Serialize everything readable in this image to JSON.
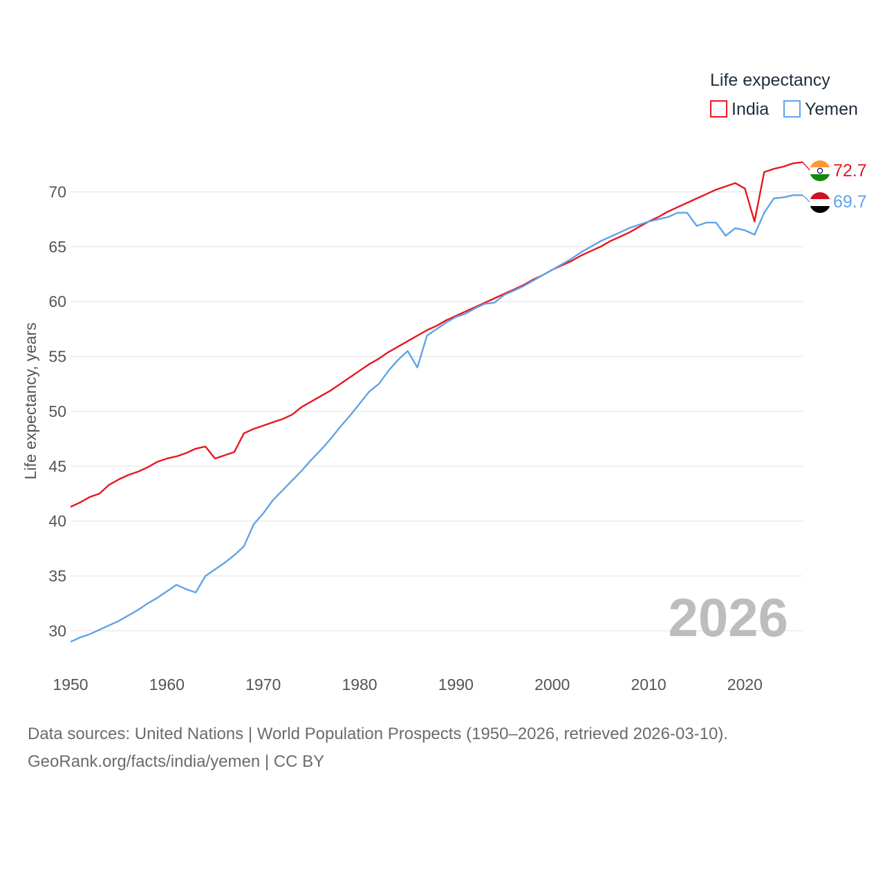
{
  "chart_data": {
    "type": "line",
    "legend_title": "Life expectancy",
    "ylabel": "Life expectancy, years",
    "xlim": [
      1950,
      2026
    ],
    "ylim": [
      26.5,
      74
    ],
    "xticks": [
      1950,
      1960,
      1970,
      1980,
      1990,
      2000,
      2010,
      2020
    ],
    "yticks": [
      30,
      35,
      40,
      45,
      50,
      55,
      60,
      65,
      70
    ],
    "year_watermark": "2026",
    "x": [
      1950,
      1951,
      1952,
      1953,
      1954,
      1955,
      1956,
      1957,
      1958,
      1959,
      1960,
      1961,
      1962,
      1963,
      1964,
      1965,
      1966,
      1967,
      1968,
      1969,
      1970,
      1971,
      1972,
      1973,
      1974,
      1975,
      1976,
      1977,
      1978,
      1979,
      1980,
      1981,
      1982,
      1983,
      1984,
      1985,
      1986,
      1987,
      1988,
      1989,
      1990,
      1991,
      1992,
      1993,
      1994,
      1995,
      1996,
      1997,
      1998,
      1999,
      2000,
      2001,
      2002,
      2003,
      2004,
      2005,
      2006,
      2007,
      2008,
      2009,
      2010,
      2011,
      2012,
      2013,
      2014,
      2015,
      2016,
      2017,
      2018,
      2019,
      2020,
      2021,
      2022,
      2023,
      2024,
      2025,
      2026
    ],
    "series": [
      {
        "name": "India",
        "color": "#e8161e",
        "end_label": "72.7",
        "values": [
          41.3,
          41.7,
          42.2,
          42.5,
          43.3,
          43.8,
          44.2,
          44.5,
          44.9,
          45.4,
          45.7,
          45.9,
          46.2,
          46.6,
          46.8,
          45.7,
          46.0,
          46.3,
          48.0,
          48.4,
          48.7,
          49.0,
          49.3,
          49.7,
          50.4,
          50.9,
          51.4,
          51.9,
          52.5,
          53.1,
          53.7,
          54.3,
          54.8,
          55.4,
          55.9,
          56.4,
          56.9,
          57.4,
          57.8,
          58.3,
          58.7,
          59.1,
          59.5,
          59.9,
          60.3,
          60.7,
          61.1,
          61.5,
          62.0,
          62.4,
          62.9,
          63.3,
          63.7,
          64.2,
          64.6,
          65.0,
          65.5,
          65.9,
          66.3,
          66.8,
          67.3,
          67.7,
          68.2,
          68.6,
          69.0,
          69.4,
          69.8,
          70.2,
          70.5,
          70.8,
          70.3,
          67.3,
          71.8,
          72.1,
          72.3,
          72.6,
          72.7
        ]
      },
      {
        "name": "Yemen",
        "color": "#5fa3e6",
        "end_label": "69.7",
        "values": [
          29.0,
          29.4,
          29.7,
          30.1,
          30.5,
          30.9,
          31.4,
          31.9,
          32.5,
          33.0,
          33.6,
          34.2,
          33.8,
          33.5,
          35.0,
          35.6,
          36.2,
          36.9,
          37.7,
          39.7,
          40.7,
          41.9,
          42.8,
          43.7,
          44.6,
          45.6,
          46.5,
          47.5,
          48.6,
          49.6,
          50.7,
          51.8,
          52.5,
          53.7,
          54.7,
          55.5,
          54.0,
          56.9,
          57.5,
          58.1,
          58.6,
          58.9,
          59.4,
          59.8,
          59.9,
          60.6,
          61.0,
          61.4,
          61.9,
          62.4,
          62.9,
          63.4,
          63.9,
          64.5,
          65.0,
          65.5,
          65.9,
          66.3,
          66.7,
          67.0,
          67.3,
          67.5,
          67.7,
          68.1,
          68.1,
          66.9,
          67.2,
          67.2,
          66.0,
          66.7,
          66.5,
          66.1,
          68.1,
          69.4,
          69.5,
          69.7,
          69.7
        ]
      }
    ]
  },
  "source_line1": "Data sources: United Nations | World Population Prospects (1950–2026, retrieved 2026-03-10).",
  "source_line2": "GeoRank.org/facts/india/yemen | CC BY",
  "flags": {
    "india": {
      "saffron": "#ff9933",
      "white": "#ffffff",
      "green": "#138808",
      "chakra": "#000080"
    },
    "yemen": {
      "red": "#ce1126",
      "white": "#ffffff",
      "black": "#000000"
    }
  }
}
